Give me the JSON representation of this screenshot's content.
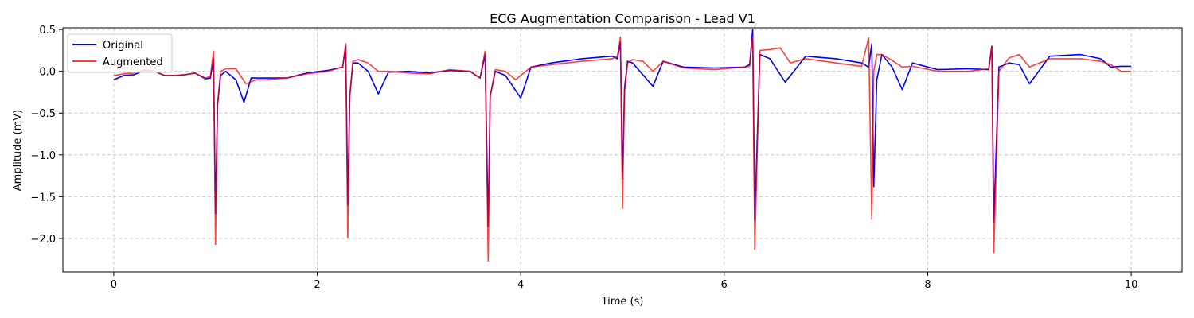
{
  "chart_data": {
    "type": "line",
    "title": "ECG Augmentation Comparison - Lead V1",
    "xlabel": "Time (s)",
    "ylabel": "Amplitude (mV)",
    "xlim": [
      -0.5,
      10.5
    ],
    "ylim": [
      -2.4,
      0.52
    ],
    "xticks": [
      0,
      2,
      4,
      6,
      8,
      10
    ],
    "xtick_labels": [
      "0",
      "2",
      "4",
      "6",
      "8",
      "10"
    ],
    "yticks": [
      0.5,
      0.0,
      -0.5,
      -1.0,
      -1.5,
      -2.0
    ],
    "ytick_labels": [
      "0.5",
      "0.0",
      "−0.5",
      "−1.0",
      "−1.5",
      "−2.0"
    ],
    "grid": true,
    "legend_position": "top-left",
    "series": [
      {
        "name": "Original",
        "color": "#0000ff",
        "x": [
          0.0,
          0.1,
          0.2,
          0.3,
          0.4,
          0.5,
          0.6,
          0.7,
          0.8,
          0.9,
          0.95,
          0.98,
          1.0,
          1.02,
          1.05,
          1.1,
          1.2,
          1.28,
          1.35,
          1.5,
          1.7,
          1.9,
          2.1,
          2.25,
          2.28,
          2.3,
          2.32,
          2.35,
          2.4,
          2.5,
          2.6,
          2.7,
          2.9,
          3.1,
          3.3,
          3.5,
          3.6,
          3.65,
          3.68,
          3.7,
          3.75,
          3.85,
          4.0,
          4.1,
          4.3,
          4.6,
          4.9,
          4.95,
          4.98,
          5.0,
          5.02,
          5.05,
          5.1,
          5.3,
          5.4,
          5.6,
          5.9,
          6.2,
          6.25,
          6.28,
          6.3,
          6.35,
          6.45,
          6.6,
          6.8,
          7.1,
          7.35,
          7.42,
          7.45,
          7.47,
          7.5,
          7.55,
          7.65,
          7.75,
          7.85,
          8.1,
          8.4,
          8.6,
          8.63,
          8.65,
          8.7,
          8.8,
          8.9,
          9.0,
          9.2,
          9.5,
          9.7,
          9.8,
          9.9,
          10.0
        ],
        "y": [
          -0.1,
          -0.05,
          -0.04,
          0.01,
          0.0,
          -0.05,
          -0.05,
          -0.04,
          -0.02,
          -0.09,
          -0.08,
          0.15,
          -1.7,
          -0.4,
          -0.05,
          0.0,
          -0.1,
          -0.37,
          -0.08,
          -0.08,
          -0.08,
          -0.02,
          0.01,
          0.05,
          0.3,
          -1.6,
          -0.3,
          0.1,
          0.1,
          0.0,
          -0.27,
          -0.01,
          0.0,
          -0.02,
          0.01,
          0.0,
          -0.08,
          0.2,
          -1.85,
          -0.3,
          0.0,
          -0.05,
          -0.32,
          0.05,
          0.1,
          0.15,
          0.18,
          0.15,
          0.35,
          -1.28,
          -0.2,
          0.12,
          0.1,
          -0.18,
          0.12,
          0.05,
          0.04,
          0.05,
          0.08,
          0.5,
          -1.78,
          0.2,
          0.15,
          -0.13,
          0.18,
          0.15,
          0.1,
          0.05,
          0.33,
          -1.38,
          -0.1,
          0.2,
          0.05,
          -0.22,
          0.1,
          0.02,
          0.03,
          0.02,
          0.3,
          -1.8,
          0.05,
          0.1,
          0.08,
          -0.15,
          0.18,
          0.2,
          0.15,
          0.05,
          0.06,
          0.06
        ]
      },
      {
        "name": "Augmented",
        "color": "#ff0000",
        "x": [
          0.0,
          0.1,
          0.2,
          0.3,
          0.4,
          0.5,
          0.6,
          0.7,
          0.8,
          0.9,
          0.95,
          0.98,
          1.0,
          1.02,
          1.05,
          1.1,
          1.2,
          1.3,
          1.4,
          1.5,
          1.7,
          1.9,
          2.1,
          2.25,
          2.28,
          2.3,
          2.32,
          2.35,
          2.4,
          2.5,
          2.6,
          2.7,
          2.9,
          3.1,
          3.3,
          3.5,
          3.6,
          3.65,
          3.68,
          3.7,
          3.75,
          3.85,
          3.95,
          4.0,
          4.1,
          4.3,
          4.6,
          4.9,
          4.95,
          4.98,
          5.0,
          5.02,
          5.05,
          5.1,
          5.2,
          5.3,
          5.4,
          5.6,
          5.9,
          6.2,
          6.25,
          6.28,
          6.3,
          6.35,
          6.45,
          6.55,
          6.65,
          6.8,
          7.1,
          7.35,
          7.42,
          7.45,
          7.47,
          7.5,
          7.55,
          7.65,
          7.75,
          7.85,
          8.1,
          8.4,
          8.6,
          8.63,
          8.65,
          8.7,
          8.8,
          8.9,
          9.0,
          9.2,
          9.5,
          9.7,
          9.8,
          9.9,
          10.0
        ],
        "y": [
          -0.05,
          -0.03,
          -0.02,
          0.02,
          0.0,
          -0.05,
          -0.05,
          -0.04,
          -0.02,
          -0.08,
          -0.06,
          0.24,
          -2.07,
          -0.4,
          0.0,
          0.03,
          0.03,
          -0.15,
          -0.1,
          -0.1,
          -0.08,
          -0.03,
          0.0,
          0.05,
          0.33,
          -1.99,
          -0.3,
          0.12,
          0.14,
          0.1,
          0.0,
          0.0,
          -0.02,
          -0.03,
          0.02,
          0.0,
          -0.08,
          0.24,
          -2.27,
          -0.3,
          0.02,
          0.0,
          -0.1,
          -0.05,
          0.05,
          0.08,
          0.12,
          0.15,
          0.18,
          0.41,
          -1.64,
          -0.25,
          0.1,
          0.14,
          0.12,
          0.0,
          0.12,
          0.04,
          0.02,
          0.05,
          0.06,
          0.42,
          -2.13,
          0.25,
          0.26,
          0.28,
          0.1,
          0.15,
          0.1,
          0.06,
          0.4,
          -1.77,
          0.0,
          0.2,
          0.2,
          0.13,
          0.05,
          0.06,
          0.0,
          0.0,
          0.03,
          0.3,
          -2.17,
          0.0,
          0.16,
          0.2,
          0.05,
          0.15,
          0.15,
          0.12,
          0.08,
          0.0,
          0.0
        ]
      }
    ]
  }
}
